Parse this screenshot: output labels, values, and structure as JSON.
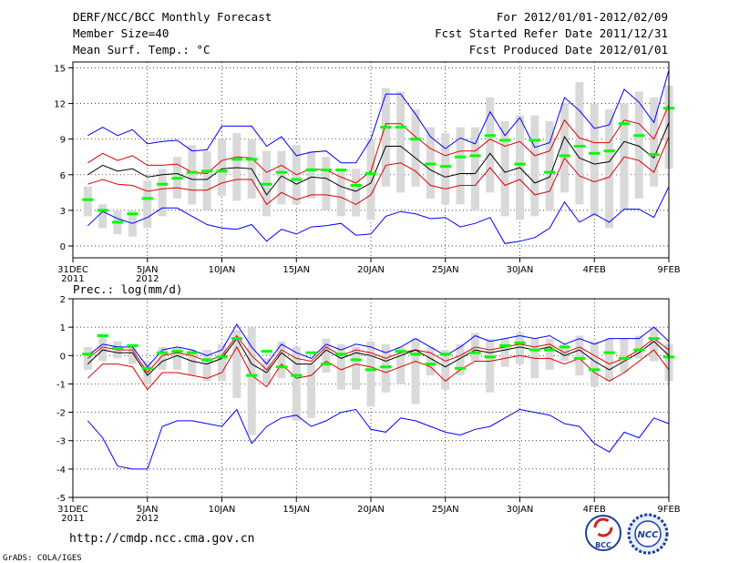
{
  "header": {
    "title": "DERF/NCC/BCC Monthly Forecast",
    "member_size": "Member Size=40",
    "period": "For 2012/01/01-2012/02/09",
    "started_refer": "Fcst Started Refer Date 2011/12/31",
    "produced": "Fcst Produced Date 2012/01/01"
  },
  "footer": {
    "url": "http://cmdp.ncc.cma.gov.cn",
    "grads": "GrADS: COLA/IGES",
    "logo_left_text": "BCC",
    "logo_right_text": "NCC"
  },
  "colors": {
    "ens_max_min": "#0000ff",
    "percentile": "#dd0000",
    "ens_mean": "#000000",
    "observation_bar": "#d9d9d9",
    "median": "#00ff00"
  },
  "chart_data": [
    {
      "type": "line",
      "title": "Mean Surf. Temp.: °C",
      "ylim": [
        -1,
        15.5
      ],
      "yticks": [
        0,
        3,
        6,
        9,
        12,
        15
      ],
      "xlim": [
        0,
        40
      ],
      "xtick_positions": [
        0,
        5,
        10,
        15,
        20,
        25,
        30,
        35,
        40
      ],
      "xtick_labels": [
        "31DEC",
        "5JAN",
        "10JAN",
        "15JAN",
        "20JAN",
        "25JAN",
        "30JAN",
        "4FEB",
        "9FEB"
      ],
      "xtick_sublabels": [
        "2011",
        "2012",
        "",
        "",
        "",
        "",
        "",
        "",
        ""
      ],
      "x": [
        1,
        2,
        3,
        4,
        5,
        6,
        7,
        8,
        9,
        10,
        11,
        12,
        13,
        14,
        15,
        16,
        17,
        18,
        19,
        20,
        21,
        22,
        23,
        24,
        25,
        26,
        27,
        28,
        29,
        30,
        31,
        32,
        33,
        34,
        35,
        36,
        37,
        38,
        39,
        40
      ],
      "bars": {
        "low": [
          2.5,
          1.5,
          1.0,
          0.8,
          1.5,
          2.5,
          4.0,
          3.5,
          3.0,
          4.2,
          3.8,
          4.0,
          2.5,
          3.5,
          3.5,
          4.0,
          3.0,
          2.5,
          2.5,
          2.2,
          5.0,
          4.5,
          5.0,
          4.0,
          3.5,
          3.5,
          3.0,
          4.5,
          2.5,
          2.2,
          2.5,
          3.0,
          4.5,
          3.5,
          2.5,
          1.5,
          3.0,
          4.0,
          5.0,
          6.5
        ],
        "high": [
          5.0,
          3.5,
          3.0,
          3.0,
          5.5,
          6.5,
          7.5,
          8.5,
          8.0,
          9.0,
          9.5,
          9.0,
          8.0,
          8.0,
          8.5,
          8.0,
          7.5,
          6.5,
          6.5,
          9.0,
          13.3,
          13.0,
          11.5,
          10.0,
          9.5,
          10.0,
          10.0,
          12.5,
          10.5,
          11.0,
          11.0,
          10.5,
          12.0,
          13.8,
          12.0,
          11.5,
          12.0,
          13.0,
          12.5,
          13.5
        ]
      },
      "series": [
        {
          "name": "ens_max",
          "color": "#0000ff",
          "values": [
            9.3,
            10.0,
            9.3,
            9.8,
            8.6,
            8.8,
            8.9,
            8.0,
            8.1,
            10.1,
            10.1,
            10.1,
            8.4,
            9.2,
            7.6,
            7.9,
            8.0,
            7.0,
            7.0,
            9.0,
            12.8,
            12.8,
            11.1,
            9.2,
            8.2,
            9.1,
            8.6,
            11.3,
            9.3,
            10.8,
            8.3,
            8.7,
            12.5,
            11.4,
            9.9,
            10.2,
            13.2,
            12.1,
            10.4,
            14.8
          ]
        },
        {
          "name": "pct_high",
          "color": "#dd0000",
          "values": [
            7.0,
            7.8,
            7.2,
            7.6,
            6.8,
            6.8,
            6.9,
            6.2,
            6.1,
            7.2,
            7.5,
            7.4,
            6.2,
            6.8,
            6.0,
            6.5,
            6.4,
            5.8,
            5.3,
            6.3,
            10.3,
            10.3,
            9.2,
            8.2,
            7.6,
            8.0,
            8.0,
            9.0,
            8.4,
            8.8,
            7.6,
            8.0,
            10.6,
            9.1,
            8.7,
            8.7,
            10.6,
            10.3,
            9.0,
            11.9
          ]
        },
        {
          "name": "ens_mean",
          "color": "#000000",
          "values": [
            6.0,
            6.8,
            6.3,
            6.5,
            5.8,
            6.0,
            6.1,
            5.6,
            5.6,
            6.5,
            6.6,
            6.5,
            4.3,
            5.9,
            5.2,
            5.8,
            5.7,
            5.0,
            4.6,
            5.3,
            8.4,
            8.4,
            7.4,
            6.4,
            5.8,
            6.1,
            6.1,
            7.8,
            6.2,
            6.6,
            5.3,
            5.8,
            9.2,
            7.4,
            6.9,
            7.1,
            8.8,
            8.4,
            7.4,
            10.4
          ]
        },
        {
          "name": "pct_low",
          "color": "#dd0000",
          "values": [
            5.2,
            5.6,
            5.2,
            5.1,
            4.6,
            4.8,
            4.9,
            4.7,
            4.7,
            5.3,
            5.6,
            5.6,
            3.5,
            4.5,
            3.9,
            4.3,
            4.3,
            4.1,
            3.5,
            4.3,
            6.8,
            7.0,
            6.3,
            5.1,
            4.8,
            5.1,
            5.1,
            6.6,
            5.1,
            5.6,
            4.3,
            4.6,
            7.4,
            5.9,
            5.4,
            5.8,
            7.5,
            7.2,
            6.2,
            9.2
          ]
        },
        {
          "name": "ens_min",
          "color": "#0000ff",
          "values": [
            1.7,
            2.9,
            2.3,
            1.9,
            2.4,
            3.2,
            3.2,
            2.5,
            1.8,
            1.5,
            1.4,
            1.8,
            0.4,
            1.4,
            1.0,
            1.6,
            1.7,
            1.9,
            0.9,
            1.0,
            2.5,
            2.9,
            2.7,
            2.3,
            2.4,
            1.6,
            1.9,
            2.4,
            0.2,
            0.4,
            0.7,
            1.5,
            3.7,
            2.0,
            2.7,
            2.0,
            3.1,
            3.1,
            2.4,
            5.0
          ]
        }
      ],
      "median": [
        3.9,
        3.0,
        2.0,
        2.7,
        4.0,
        5.2,
        5.7,
        6.2,
        6.3,
        6.3,
        7.3,
        7.3,
        5.2,
        6.2,
        5.6,
        6.4,
        6.4,
        6.4,
        5.1,
        6.1,
        10.0,
        10.0,
        9.0,
        6.9,
        6.7,
        7.5,
        7.6,
        9.3,
        8.9,
        6.9,
        8.9,
        6.2,
        7.6,
        8.4,
        7.8,
        8.0,
        10.3,
        9.3,
        7.7,
        11.6
      ]
    },
    {
      "type": "line",
      "title": "Prec.: log(mm/d)",
      "ylim": [
        -5,
        2
      ],
      "yticks": [
        -5,
        -4,
        -3,
        -2,
        -1,
        0,
        1,
        2
      ],
      "xlim": [
        0,
        40
      ],
      "xtick_positions": [
        0,
        5,
        10,
        15,
        20,
        25,
        30,
        35,
        40
      ],
      "xtick_labels": [
        "31DEC",
        "5JAN",
        "10JAN",
        "15JAN",
        "20JAN",
        "25JAN",
        "30JAN",
        "4FEB",
        "9FEB"
      ],
      "xtick_sublabels": [
        "2011",
        "2012",
        "",
        "",
        "",
        "",
        "",
        "",
        ""
      ],
      "x": [
        1,
        2,
        3,
        4,
        5,
        6,
        7,
        8,
        9,
        10,
        11,
        12,
        13,
        14,
        15,
        16,
        17,
        18,
        19,
        20,
        21,
        22,
        23,
        24,
        25,
        26,
        27,
        28,
        29,
        30,
        31,
        32,
        33,
        34,
        35,
        36,
        37,
        38,
        39,
        40
      ],
      "bars": {
        "low": [
          -0.5,
          -0.2,
          -0.1,
          -0.3,
          -1.0,
          -0.5,
          -0.5,
          -0.7,
          -0.9,
          -0.9,
          -1.5,
          -2.8,
          -1.0,
          -0.8,
          -2.3,
          -2.2,
          -0.6,
          -1.2,
          -1.2,
          -1.8,
          -1.3,
          -1.0,
          -1.7,
          -0.7,
          -1.2,
          -0.7,
          -0.2,
          -1.3,
          -0.4,
          -0.3,
          -0.8,
          -0.5,
          -0.2,
          -0.7,
          -1.1,
          -0.9,
          -0.6,
          -0.1,
          -0.2,
          -0.9
        ],
        "high": [
          0.3,
          0.7,
          0.5,
          0.4,
          -0.2,
          0.3,
          0.3,
          0.2,
          0.2,
          0.4,
          0.9,
          1.0,
          -0.1,
          0.5,
          0.3,
          -0.3,
          0.6,
          0.4,
          0.3,
          0.5,
          0.4,
          0.3,
          0.6,
          0.3,
          0.2,
          0.4,
          0.8,
          0.6,
          0.6,
          0.8,
          0.6,
          0.6,
          0.4,
          0.7,
          0.5,
          0.6,
          0.6,
          0.7,
          1.0,
          0.4
        ]
      },
      "series": [
        {
          "name": "ens_max",
          "color": "#0000ff",
          "values": [
            0.0,
            0.4,
            0.3,
            0.3,
            -0.4,
            0.2,
            0.3,
            0.2,
            0.0,
            0.2,
            1.1,
            0.3,
            -0.3,
            0.4,
            0.1,
            -0.1,
            0.4,
            0.2,
            0.4,
            0.3,
            0.1,
            0.3,
            0.6,
            0.3,
            0.0,
            0.3,
            0.7,
            0.5,
            0.6,
            0.7,
            0.6,
            0.7,
            0.4,
            0.6,
            0.4,
            0.6,
            0.6,
            0.6,
            1.0,
            0.5
          ]
        },
        {
          "name": "pct_high",
          "color": "#dd0000",
          "values": [
            -0.1,
            0.3,
            0.2,
            0.2,
            -0.6,
            0.0,
            0.1,
            0.0,
            -0.2,
            0.0,
            0.7,
            0.0,
            -0.5,
            0.2,
            -0.1,
            -0.2,
            0.3,
            0.0,
            0.2,
            0.1,
            -0.1,
            0.1,
            0.2,
            0.1,
            -0.2,
            0.0,
            0.3,
            0.2,
            0.3,
            0.4,
            0.3,
            0.4,
            0.1,
            0.3,
            0.0,
            -0.3,
            -0.1,
            0.2,
            0.6,
            0.2
          ]
        },
        {
          "name": "ens_mean",
          "color": "#000000",
          "values": [
            -0.3,
            0.2,
            0.1,
            0.1,
            -0.7,
            -0.2,
            0.0,
            -0.2,
            -0.3,
            -0.1,
            0.6,
            -0.3,
            -0.6,
            0.1,
            -0.3,
            -0.3,
            0.2,
            -0.1,
            0.1,
            0.0,
            -0.2,
            0.0,
            0.2,
            -0.1,
            -0.4,
            -0.1,
            0.2,
            0.1,
            0.2,
            0.3,
            0.2,
            0.3,
            0.0,
            0.2,
            -0.2,
            -0.5,
            -0.2,
            0.1,
            0.5,
            0.0
          ]
        },
        {
          "name": "pct_low",
          "color": "#dd0000",
          "values": [
            -0.8,
            -0.3,
            -0.3,
            -0.4,
            -1.2,
            -0.6,
            -0.6,
            -0.7,
            -0.8,
            -0.6,
            0.3,
            -0.7,
            -1.1,
            -0.3,
            -0.8,
            -0.7,
            -0.2,
            -0.5,
            -0.3,
            -0.4,
            -0.6,
            -0.4,
            -0.2,
            -0.4,
            -0.9,
            -0.5,
            -0.2,
            -0.2,
            -0.1,
            0.0,
            -0.1,
            -0.1,
            -0.3,
            -0.1,
            -0.6,
            -0.9,
            -0.6,
            -0.2,
            0.2,
            -0.5
          ]
        },
        {
          "name": "ens_min",
          "color": "#0000ff",
          "values": [
            -2.3,
            -2.9,
            -3.9,
            -4.0,
            -4.0,
            -2.5,
            -2.3,
            -2.3,
            -2.4,
            -2.5,
            -1.9,
            -3.1,
            -2.5,
            -2.2,
            -2.1,
            -2.5,
            -2.3,
            -2.0,
            -1.9,
            -2.6,
            -2.7,
            -2.2,
            -2.3,
            -2.5,
            -2.7,
            -2.8,
            -2.6,
            -2.5,
            -2.2,
            -1.9,
            -2.0,
            -2.1,
            -2.4,
            -2.5,
            -3.1,
            -3.4,
            -2.7,
            -2.9,
            -2.2,
            -2.4
          ]
        }
      ],
      "median": [
        0.05,
        0.7,
        0.25,
        0.35,
        -0.45,
        0.1,
        0.15,
        0.1,
        -0.15,
        -0.05,
        0.6,
        -0.7,
        0.15,
        -0.4,
        -0.7,
        0.1,
        -0.3,
        0.05,
        -0.15,
        -0.5,
        -0.4,
        0.15,
        0.05,
        -0.3,
        0.05,
        -0.45,
        0.1,
        -0.05,
        0.35,
        0.45,
        0.2,
        0.2,
        0.3,
        -0.1,
        -0.5,
        0.1,
        -0.1,
        0.2,
        0.6,
        -0.05
      ]
    }
  ]
}
